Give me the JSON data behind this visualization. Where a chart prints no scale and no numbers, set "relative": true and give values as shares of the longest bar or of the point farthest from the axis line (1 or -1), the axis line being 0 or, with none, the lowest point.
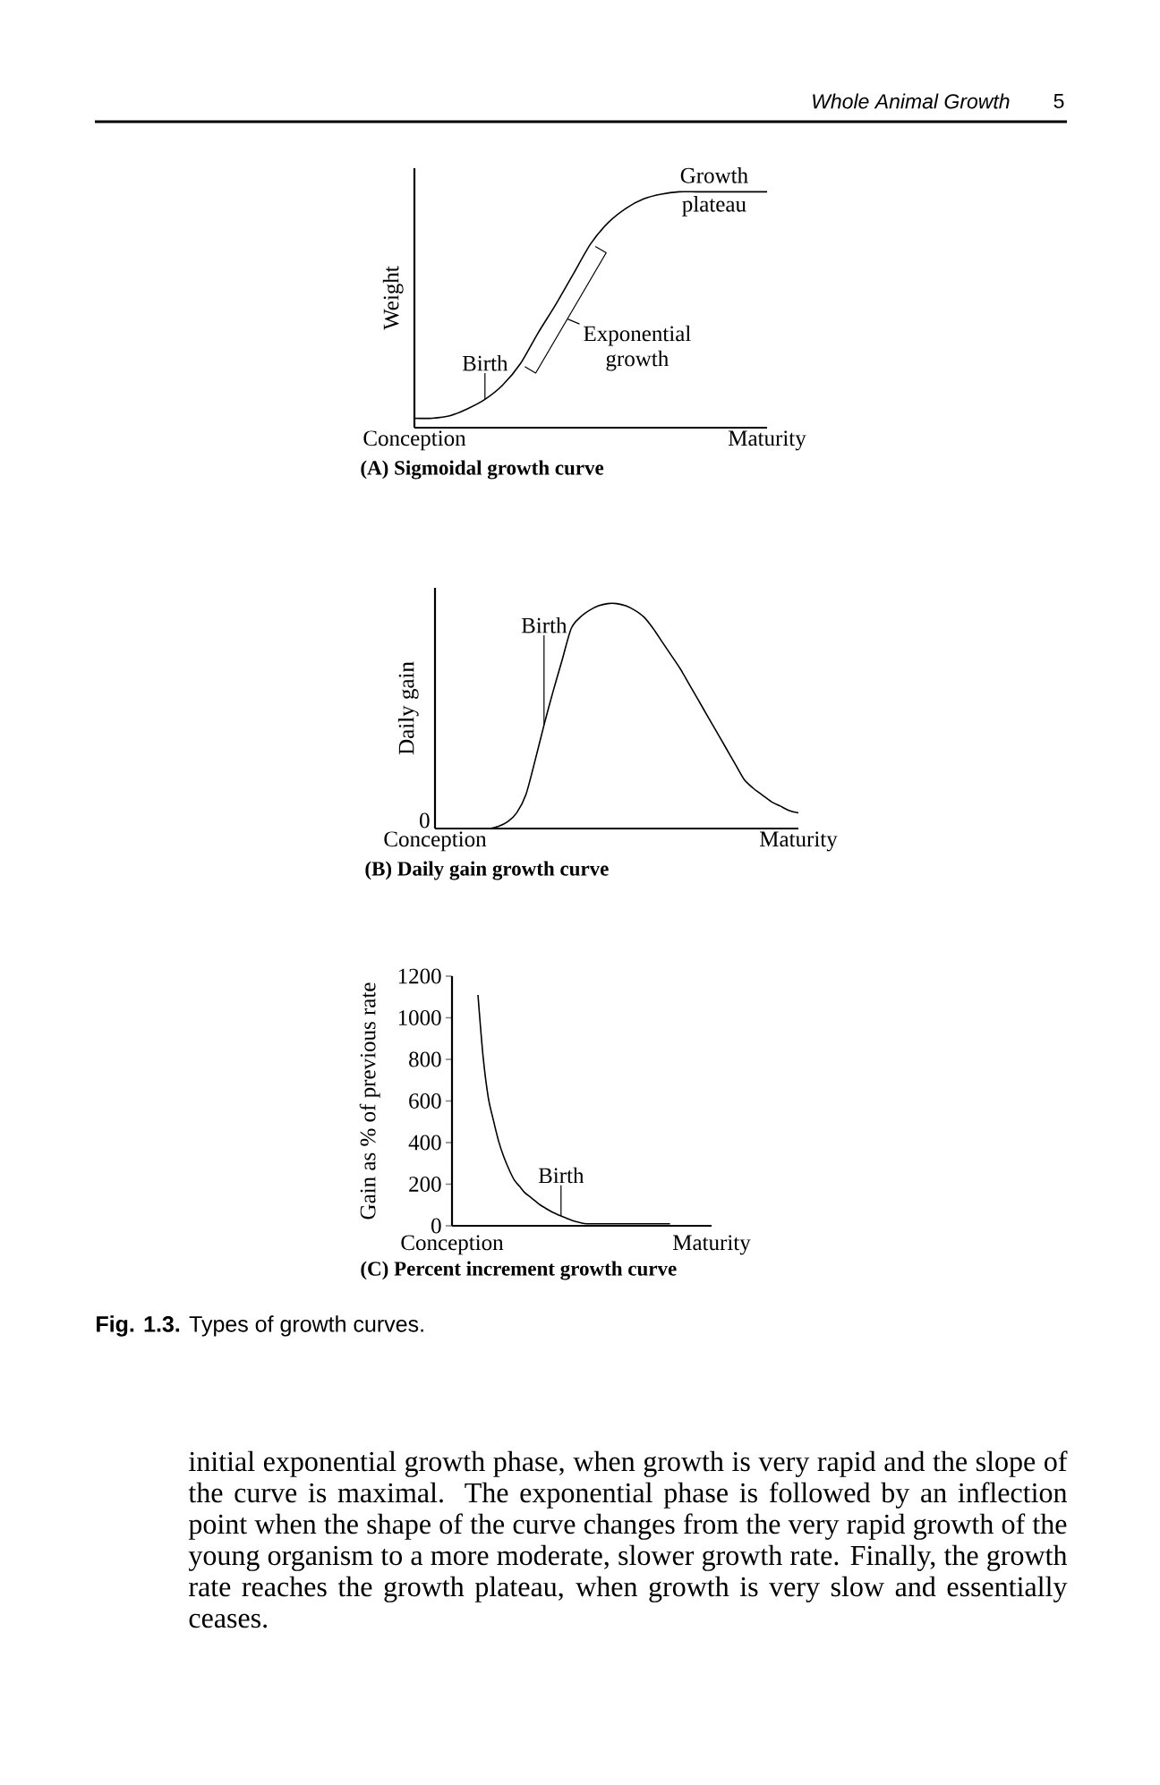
{
  "chart_data": [
    {
      "type": "line",
      "title": "(A) Sigmoidal growth curve",
      "ylabel": "Weight",
      "relative": true,
      "categories": [
        "Conception",
        null,
        null,
        null,
        null,
        null,
        null,
        null,
        null,
        null,
        null,
        null,
        null,
        null,
        null,
        null,
        null,
        null,
        null,
        null,
        "Maturity"
      ],
      "values": [
        0.04,
        0.04,
        0.05,
        0.08,
        0.12,
        0.18,
        0.27,
        0.4,
        0.52,
        0.65,
        0.78,
        0.87,
        0.93,
        0.97,
        0.99,
        1,
        1,
        1,
        1,
        1,
        1
      ],
      "color": "#000000",
      "annotations": [
        "Whole Animal Growth",
        "5",
        "Birth",
        "Exponential growth",
        "Growth plateau"
      ]
    },
    {
      "type": "line",
      "title": "(B) Daily gain growth curve",
      "ylabel": "Daily gain",
      "relative": true,
      "categories": [
        "Conception",
        null,
        null,
        null,
        null,
        null,
        null,
        null,
        null,
        null,
        null,
        null,
        null,
        null,
        null,
        null,
        null,
        null,
        null,
        null,
        null,
        null,
        null,
        null,
        null,
        null,
        null,
        null,
        null,
        null,
        null,
        null,
        null,
        null,
        null,
        null,
        null,
        null,
        null,
        null,
        "Maturity"
      ],
      "values": [
        null,
        null,
        null,
        null,
        null,
        0,
        0,
        0.01,
        0.03,
        0.07,
        0.15,
        0.3,
        0.46,
        0.61,
        0.75,
        0.89,
        0.94,
        0.97,
        0.99,
        1,
        1,
        0.99,
        0.97,
        0.94,
        0.89,
        0.83,
        0.77,
        0.71,
        0.64,
        0.57,
        0.5,
        0.43,
        0.36,
        0.29,
        0.22,
        0.18,
        0.15,
        0.12,
        0.1,
        0.08,
        0.07
      ],
      "color": "#000000",
      "annotations": [
        "Birth",
        "0"
      ]
    },
    {
      "type": "line",
      "title": "(C) Percent increment growth curve",
      "ylabel": "Gain as % of previous rate",
      "categories": [
        "Conception",
        null,
        null,
        null,
        null,
        null,
        null,
        null,
        null,
        null,
        null,
        null,
        null,
        null,
        null,
        null,
        null,
        null,
        null,
        null,
        null,
        null,
        null,
        null,
        null,
        null,
        null,
        null,
        null,
        null,
        null,
        null,
        null,
        null,
        null,
        null,
        null,
        null,
        null,
        null,
        null,
        null,
        null,
        null,
        null,
        null,
        null,
        null,
        null,
        null,
        "Maturity"
      ],
      "values": [
        null,
        null,
        null,
        null,
        null,
        1110,
        810,
        615,
        505,
        405,
        330,
        270,
        220,
        190,
        160,
        140,
        120,
        100,
        85,
        70,
        58,
        47,
        37,
        27,
        19,
        13,
        10,
        10,
        10,
        10,
        10,
        10,
        10,
        10,
        10,
        10,
        10,
        10,
        10,
        10,
        10,
        10,
        10,
        null,
        null,
        null,
        null,
        null,
        null,
        null,
        null
      ],
      "color": "#000000",
      "ylim": [
        0,
        1200
      ],
      "yticks": [
        0,
        200,
        400,
        600,
        800,
        1000,
        1200
      ],
      "annotations": [
        "Birth",
        "**Fig. 1.3.** Types of growth curves.",
        "initial exponential growth phase, when growth is very rapid and the slope of the curve is maximal. The exponential phase is followed by an inflection point when the shape of the curve changes from the very rapid growth of the young organism to a more moderate, slower growth rate. Finally, the growth rate reaches the growth plateau, when growth is very slow and essentially ceases."
      ]
    }
  ]
}
